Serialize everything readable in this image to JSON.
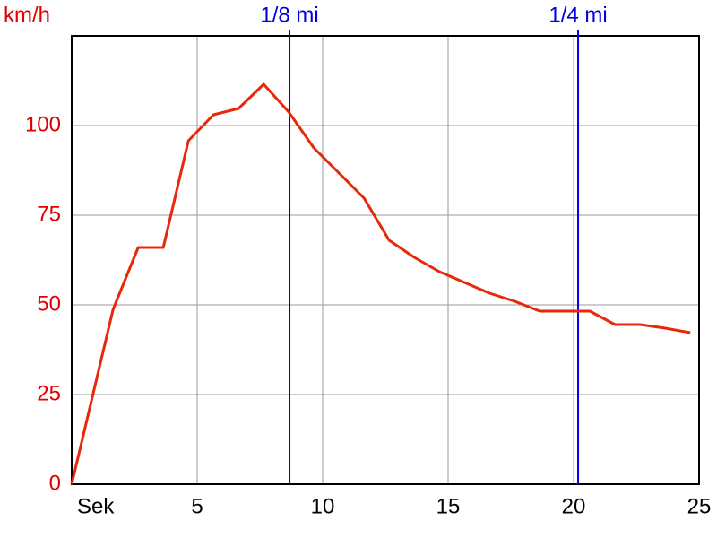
{
  "chart_data": {
    "type": "line",
    "y_label": "km/h",
    "x": [
      0,
      1.65,
      2.65,
      3.65,
      4.65,
      5.65,
      6.65,
      7.65,
      8.65,
      9.65,
      10.65,
      11.65,
      12.65,
      13.65,
      14.65,
      15.65,
      16.65,
      17.65,
      18.65,
      19.65,
      20.65,
      21.65,
      22.65,
      23.65,
      24.65
    ],
    "series": [
      {
        "name": "km/h",
        "color": "#e8280a",
        "values": [
          0,
          48.75,
          66,
          66,
          95.75,
          103,
          104.75,
          111.5,
          103.75,
          93.75,
          86.75,
          79.75,
          68,
          63.25,
          59.25,
          56.25,
          53.25,
          51,
          48.25,
          48.25,
          48.25,
          44.5,
          44.5,
          43.5,
          42.25
        ]
      }
    ],
    "xlim": [
      0,
      25
    ],
    "xticks": [
      {
        "value": 0,
        "label": "Sek"
      },
      5,
      10,
      15,
      20,
      25
    ],
    "ylim": [
      0,
      125
    ],
    "yticks": [
      0,
      25,
      50,
      75,
      100
    ],
    "grid": true,
    "annotations": [
      {
        "label": "1/8 mi",
        "x": 8.68,
        "color": "#0000e0"
      },
      {
        "label": "1/4 mi",
        "x": 20.18,
        "color": "#0000e0"
      }
    ]
  }
}
